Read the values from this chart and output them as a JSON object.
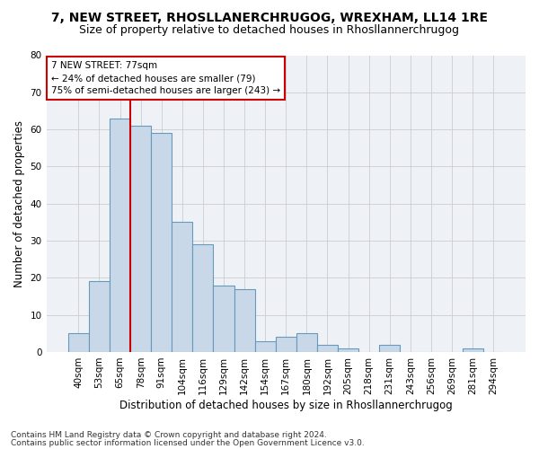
{
  "title": "7, NEW STREET, RHOSLLANERCHRUGOG, WREXHAM, LL14 1RE",
  "subtitle": "Size of property relative to detached houses in Rhosllannerchrugog",
  "xlabel": "Distribution of detached houses by size in Rhosllannerchrugog",
  "ylabel": "Number of detached properties",
  "categories": [
    "40sqm",
    "53sqm",
    "65sqm",
    "78sqm",
    "91sqm",
    "104sqm",
    "116sqm",
    "129sqm",
    "142sqm",
    "154sqm",
    "167sqm",
    "180sqm",
    "192sqm",
    "205sqm",
    "218sqm",
    "231sqm",
    "243sqm",
    "256sqm",
    "269sqm",
    "281sqm",
    "294sqm"
  ],
  "values": [
    5,
    19,
    63,
    61,
    59,
    35,
    29,
    18,
    17,
    3,
    4,
    5,
    2,
    1,
    0,
    2,
    0,
    0,
    0,
    1,
    0
  ],
  "bar_color": "#c8d8e8",
  "bar_edge_color": "#6699bb",
  "bar_linewidth": 0.8,
  "grid_color": "#cccccc",
  "subject_line_color": "#cc0000",
  "subject_line_index": 2.5,
  "annotation_text": "7 NEW STREET: 77sqm\n← 24% of detached houses are smaller (79)\n75% of semi-detached houses are larger (243) →",
  "annotation_box_color": "white",
  "annotation_box_edge_color": "#cc0000",
  "ylim": [
    0,
    80
  ],
  "yticks": [
    0,
    10,
    20,
    30,
    40,
    50,
    60,
    70,
    80
  ],
  "footer1": "Contains HM Land Registry data © Crown copyright and database right 2024.",
  "footer2": "Contains public sector information licensed under the Open Government Licence v3.0.",
  "bg_color": "#ffffff",
  "plot_bg_color": "#eef2f7",
  "title_fontsize": 10,
  "subtitle_fontsize": 9,
  "xlabel_fontsize": 8.5,
  "ylabel_fontsize": 8.5,
  "tick_fontsize": 7.5,
  "footer_fontsize": 6.5,
  "annotation_fontsize": 7.5
}
